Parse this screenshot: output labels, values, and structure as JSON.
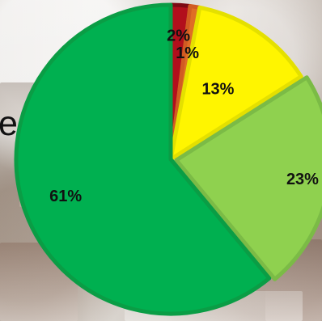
{
  "page": {
    "left_text_fragment": "e"
  },
  "chart_data": {
    "type": "pie",
    "categories": [
      "",
      "",
      "",
      "",
      ""
    ],
    "values": [
      2,
      1,
      13,
      23,
      61
    ],
    "labels": [
      "2%",
      "1%",
      "13%",
      "23%",
      "61%"
    ],
    "colors": [
      "#b20f1c",
      "#df6d25",
      "#fff500",
      "#8fd14f",
      "#00b050"
    ],
    "stroke_colors": [
      "#7d0a13",
      "#d15b22",
      "#e4e000",
      "#7bbb46",
      "#0a9d45"
    ],
    "start_angle_degrees": 0,
    "direction": "clockwise",
    "title": "",
    "legend": "none"
  }
}
